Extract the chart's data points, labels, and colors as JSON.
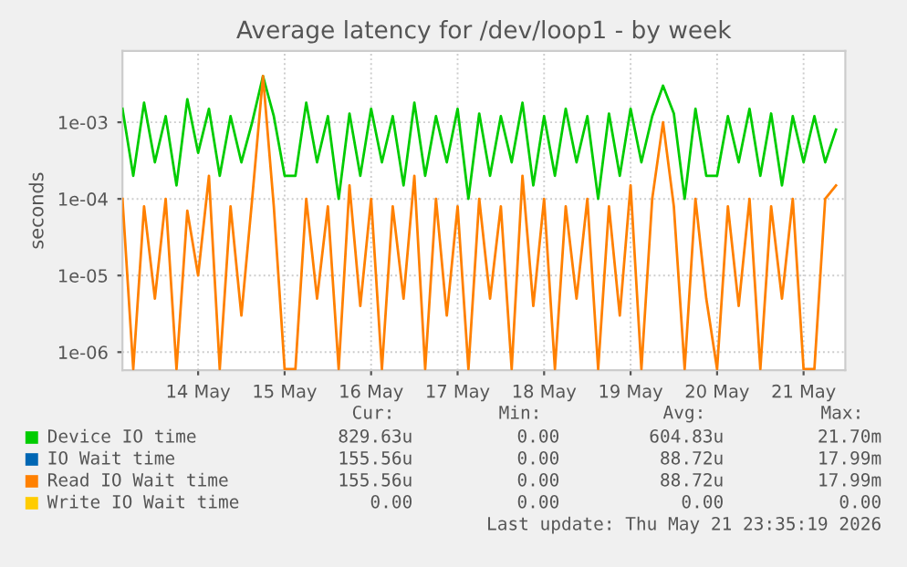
{
  "chart_data": {
    "type": "line",
    "title": "Average latency for /dev/loop1 - by week",
    "ylabel": "seconds",
    "log": "y",
    "x": [
      "2026-05-13T15:00",
      "2026-05-13T18:00",
      "2026-05-13T21:00",
      "2026-05-14T00:00",
      "2026-05-14T03:00",
      "2026-05-14T06:00",
      "2026-05-14T09:00",
      "2026-05-14T12:00",
      "2026-05-14T15:00",
      "2026-05-14T18:00",
      "2026-05-14T21:00",
      "2026-05-15T00:00",
      "2026-05-15T03:00",
      "2026-05-15T06:00",
      "2026-05-15T09:00",
      "2026-05-15T12:00",
      "2026-05-15T15:00",
      "2026-05-15T18:00",
      "2026-05-15T21:00",
      "2026-05-16T00:00",
      "2026-05-16T03:00",
      "2026-05-16T06:00",
      "2026-05-16T09:00",
      "2026-05-16T12:00",
      "2026-05-16T15:00",
      "2026-05-16T18:00",
      "2026-05-16T21:00",
      "2026-05-17T00:00",
      "2026-05-17T03:00",
      "2026-05-17T06:00",
      "2026-05-17T09:00",
      "2026-05-17T12:00",
      "2026-05-17T15:00",
      "2026-05-17T18:00",
      "2026-05-17T21:00",
      "2026-05-18T00:00",
      "2026-05-18T03:00",
      "2026-05-18T06:00",
      "2026-05-18T09:00",
      "2026-05-18T12:00",
      "2026-05-18T15:00",
      "2026-05-18T18:00",
      "2026-05-18T21:00",
      "2026-05-19T00:00",
      "2026-05-19T03:00",
      "2026-05-19T06:00",
      "2026-05-19T09:00",
      "2026-05-19T12:00",
      "2026-05-19T15:00",
      "2026-05-19T18:00",
      "2026-05-19T21:00",
      "2026-05-20T00:00",
      "2026-05-20T03:00",
      "2026-05-20T06:00",
      "2026-05-20T09:00",
      "2026-05-20T12:00",
      "2026-05-20T15:00",
      "2026-05-20T18:00",
      "2026-05-20T21:00",
      "2026-05-21T00:00",
      "2026-05-21T03:00",
      "2026-05-21T06:00",
      "2026-05-21T09:00",
      "2026-05-21T12:00",
      "2026-05-21T15:00",
      "2026-05-21T18:00",
      "2026-05-21T21:00"
    ],
    "series": [
      {
        "name": "Device IO time",
        "color": "#00cc00",
        "values": [
          0.0015,
          0.0002,
          0.0018,
          0.0003,
          0.0012,
          0.00015,
          0.002,
          0.0004,
          0.0015,
          0.0002,
          0.0012,
          0.0003,
          0.001,
          0.004,
          0.0012,
          0.0002,
          0.0002,
          0.0018,
          0.0003,
          0.0012,
          0.0001,
          0.0013,
          0.0002,
          0.0015,
          0.0003,
          0.0012,
          0.00015,
          0.0018,
          0.0002,
          0.0012,
          0.0003,
          0.0015,
          0.0001,
          0.0013,
          0.0002,
          0.0012,
          0.0003,
          0.0018,
          0.00015,
          0.0012,
          0.0002,
          0.0015,
          0.0003,
          0.0012,
          0.0001,
          0.0013,
          0.0002,
          0.0015,
          0.0003,
          0.0012,
          0.003,
          0.0013,
          0.0001,
          0.0015,
          0.0002,
          0.0002,
          0.0012,
          0.0003,
          0.0015,
          0.0002,
          0.0013,
          0.00015,
          0.0012,
          0.0003,
          0.0012,
          0.0003,
          0.0008
        ]
      },
      {
        "name": "IO Wait time",
        "color": "#0066b3",
        "values": [
          null,
          null,
          null,
          null,
          null,
          null,
          null,
          null,
          null,
          null,
          null,
          null,
          null,
          null,
          null,
          null,
          null,
          null,
          null,
          null,
          null,
          null,
          null,
          null,
          null,
          null,
          null,
          null,
          null,
          null,
          null,
          null,
          null,
          null,
          null,
          null,
          null,
          null,
          null,
          null,
          null,
          null,
          null,
          null,
          null,
          null,
          null,
          null,
          null,
          null,
          null,
          null,
          null,
          null,
          null,
          null,
          null,
          null,
          null,
          null,
          null,
          null,
          null,
          null,
          null,
          null,
          null
        ]
      },
      {
        "name": "Read IO Wait time",
        "color": "#ff8000",
        "values": [
          0.0001,
          6e-07,
          8e-05,
          5e-06,
          0.0001,
          6e-07,
          7e-05,
          1e-05,
          0.0002,
          6e-07,
          8e-05,
          3e-06,
          0.0001,
          0.004,
          8e-05,
          6e-07,
          6e-07,
          0.0001,
          5e-06,
          8e-05,
          6e-07,
          0.00015,
          4e-06,
          0.0001,
          6e-07,
          8e-05,
          5e-06,
          0.0002,
          6e-07,
          0.0001,
          3e-06,
          8e-05,
          6e-07,
          0.0001,
          5e-06,
          8e-05,
          6e-07,
          0.0002,
          4e-06,
          0.0001,
          6e-07,
          8e-05,
          5e-06,
          0.0001,
          6e-07,
          8e-05,
          3e-06,
          0.00015,
          6e-07,
          0.0001,
          0.001,
          8e-05,
          6e-07,
          0.0001,
          5e-06,
          6e-07,
          8e-05,
          4e-06,
          0.0001,
          6e-07,
          8e-05,
          5e-06,
          0.0001,
          6e-07,
          6e-07,
          0.0001,
          0.00015
        ]
      },
      {
        "name": "Write IO Wait time",
        "color": "#ffcc00",
        "values": [
          null,
          null,
          null,
          null,
          null,
          null,
          null,
          null,
          null,
          null,
          null,
          null,
          null,
          null,
          null,
          null,
          null,
          null,
          null,
          null,
          null,
          null,
          null,
          null,
          null,
          null,
          null,
          null,
          null,
          null,
          null,
          null,
          null,
          null,
          null,
          null,
          null,
          null,
          null,
          null,
          null,
          null,
          null,
          null,
          null,
          null,
          null,
          null,
          null,
          null,
          null,
          null,
          null,
          null,
          null,
          null,
          null,
          null,
          null,
          null,
          null,
          null,
          null,
          null,
          null,
          null,
          null
        ]
      }
    ],
    "xlim": [
      "2026-05-13T15:00",
      "2026-05-21T23:35"
    ],
    "xticks": [
      {
        "value": "2026-05-14T12:00",
        "label": "14 May"
      },
      {
        "value": "2026-05-15T12:00",
        "label": "15 May"
      },
      {
        "value": "2026-05-16T12:00",
        "label": "16 May"
      },
      {
        "value": "2026-05-17T12:00",
        "label": "17 May"
      },
      {
        "value": "2026-05-18T12:00",
        "label": "18 May"
      },
      {
        "value": "2026-05-19T12:00",
        "label": "19 May"
      },
      {
        "value": "2026-05-20T12:00",
        "label": "20 May"
      },
      {
        "value": "2026-05-21T12:00",
        "label": "21 May"
      }
    ],
    "ylim": [
      5.8e-07,
      0.0085
    ],
    "yticks": [
      {
        "value": 1e-06,
        "label": "1e-06"
      },
      {
        "value": 1e-05,
        "label": "1e-05"
      },
      {
        "value": 0.0001,
        "label": "1e-04"
      },
      {
        "value": 0.001,
        "label": "1e-03"
      }
    ],
    "grid": true,
    "legend": "bottom",
    "marker": "none",
    "line_style": "solid",
    "annotations": [
      "Cur:",
      "Min:",
      "Avg:",
      "Max:",
      "829.63u",
      "0.00",
      "604.83u",
      "21.70m",
      "155.56u",
      "0.00",
      "88.72u",
      "17.99m",
      "155.56u",
      "0.00",
      "88.72u",
      "17.99m",
      "0.00",
      "0.00",
      "0.00",
      "0.00",
      "Last update: Thu May 21 23:35:19 2026"
    ]
  }
}
